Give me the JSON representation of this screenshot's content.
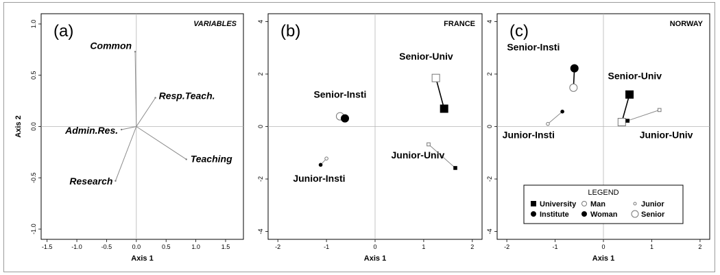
{
  "chart_data": [
    {
      "type": "scatter",
      "panel_label": "(a)",
      "title": "VARIABLES",
      "xlabel": "Axis 1",
      "ylabel": "Axis 2",
      "xlim": [
        -1.6,
        1.8
      ],
      "ylim": [
        -1.1,
        1.1
      ],
      "xticks": [
        -1.5,
        -1.0,
        -0.5,
        0.0,
        0.5,
        1.0,
        1.5
      ],
      "yticks": [
        -1.0,
        -0.5,
        0.0,
        0.5,
        1.0
      ],
      "xtick_labels": [
        "-1.5",
        "-1.0",
        "-0.5",
        "0.0",
        "0.5",
        "1.0",
        "1.5"
      ],
      "ytick_labels": [
        "-1.0",
        "-0.5",
        "0.0",
        "0.5",
        "1.0"
      ],
      "vectors": [
        {
          "name": "Common",
          "x": -0.02,
          "y": 0.73
        },
        {
          "name": "Resp.Teach.",
          "x": 0.32,
          "y": 0.28
        },
        {
          "name": "Admin.Res.",
          "x": -0.25,
          "y": -0.03
        },
        {
          "name": "Teaching",
          "x": 0.84,
          "y": -0.32
        },
        {
          "name": "Research",
          "x": -0.35,
          "y": -0.53
        }
      ]
    },
    {
      "type": "scatter",
      "panel_label": "(b)",
      "title": "FRANCE",
      "xlabel": "Axis 1",
      "ylabel": "",
      "xlim": [
        -2.2,
        2.2
      ],
      "ylim": [
        -4.3,
        4.3
      ],
      "xticks": [
        -2,
        -1,
        0,
        1,
        2
      ],
      "yticks": [
        -4,
        -2,
        0,
        2,
        4
      ],
      "xtick_labels": [
        "-2",
        "-1",
        "0",
        "1",
        "2"
      ],
      "ytick_labels": [
        "-4",
        "-2",
        "0",
        "2",
        "4"
      ],
      "groups": [
        {
          "name": "Senior-Univ",
          "points": [
            {
              "sex": "Man",
              "x": 1.25,
              "y": 1.85
            },
            {
              "sex": "Woman",
              "x": 1.42,
              "y": 0.68
            }
          ]
        },
        {
          "name": "Senior-Insti",
          "points": [
            {
              "sex": "Man",
              "x": -0.72,
              "y": 0.39
            },
            {
              "sex": "Woman",
              "x": -0.62,
              "y": 0.31
            }
          ]
        },
        {
          "name": "Junior-Univ",
          "points": [
            {
              "sex": "Man",
              "x": 1.1,
              "y": -0.68
            },
            {
              "sex": "Woman",
              "x": 1.65,
              "y": -1.58
            }
          ]
        },
        {
          "name": "Junior-Insti",
          "points": [
            {
              "sex": "Man",
              "x": -1.0,
              "y": -1.22
            },
            {
              "sex": "Woman",
              "x": -1.12,
              "y": -1.46
            }
          ]
        }
      ]
    },
    {
      "type": "scatter",
      "panel_label": "(c)",
      "title": "NORWAY",
      "xlabel": "Axis 1",
      "ylabel": "",
      "xlim": [
        -2.2,
        2.2
      ],
      "ylim": [
        -4.3,
        4.3
      ],
      "xticks": [
        -2,
        -1,
        0,
        1,
        2
      ],
      "yticks": [
        -4,
        -2,
        0,
        2,
        4
      ],
      "xtick_labels": [
        "-2",
        "-1",
        "0",
        "1",
        "2"
      ],
      "ytick_labels": [
        "-4",
        "-2",
        "0",
        "2",
        "4"
      ],
      "groups": [
        {
          "name": "Senior-Insti",
          "points": [
            {
              "sex": "Man",
              "x": -0.62,
              "y": 1.48
            },
            {
              "sex": "Woman",
              "x": -0.6,
              "y": 2.22
            }
          ]
        },
        {
          "name": "Senior-Univ",
          "points": [
            {
              "sex": "Man",
              "x": 0.38,
              "y": 0.17
            },
            {
              "sex": "Woman",
              "x": 0.54,
              "y": 1.22
            }
          ]
        },
        {
          "name": "Junior-Insti",
          "points": [
            {
              "sex": "Man",
              "x": -1.15,
              "y": 0.1
            },
            {
              "sex": "Woman",
              "x": -0.85,
              "y": 0.57
            }
          ]
        },
        {
          "name": "Junior-Univ",
          "points": [
            {
              "sex": "Man",
              "x": 1.16,
              "y": 0.63
            },
            {
              "sex": "Woman",
              "x": 0.5,
              "y": 0.22
            }
          ]
        }
      ],
      "legend": {
        "title": "LEGEND",
        "placement": "bottom",
        "items": [
          "University",
          "Man",
          "Junior",
          "Institute",
          "Woman",
          "Senior"
        ]
      }
    }
  ]
}
